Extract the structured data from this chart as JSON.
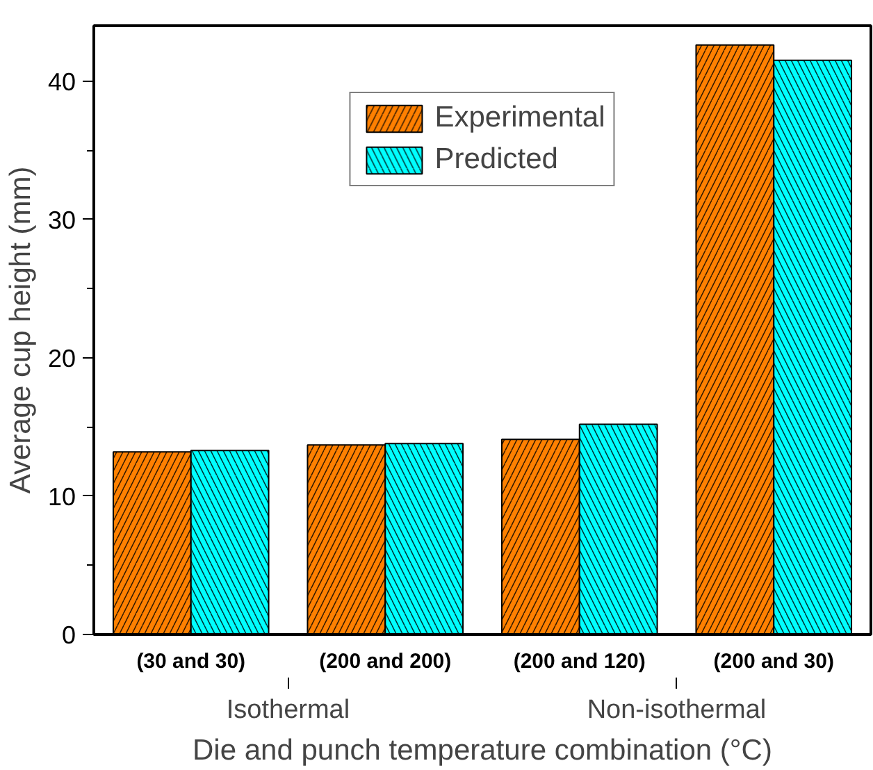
{
  "chart_data": {
    "type": "bar",
    "categories": [
      "(30 and 30)",
      "(200 and 200)",
      "(200 and 120)",
      "(200 and 30)"
    ],
    "series": [
      {
        "name": "Experimental",
        "color": "#ff8000",
        "values": [
          13.2,
          13.7,
          14.1,
          42.6
        ]
      },
      {
        "name": "Predicted",
        "color": "#00ffff",
        "values": [
          13.3,
          13.8,
          15.2,
          41.5
        ]
      }
    ],
    "xlabel": "Die and punch temperature combination (°C)",
    "ylabel": "Average cup height (mm)",
    "ylim": [
      0,
      44
    ],
    "yticks": [
      0,
      10,
      20,
      30,
      40
    ],
    "annotations": [
      "Isothermal",
      "Non-isothermal"
    ],
    "legend": "top",
    "grid": false
  }
}
